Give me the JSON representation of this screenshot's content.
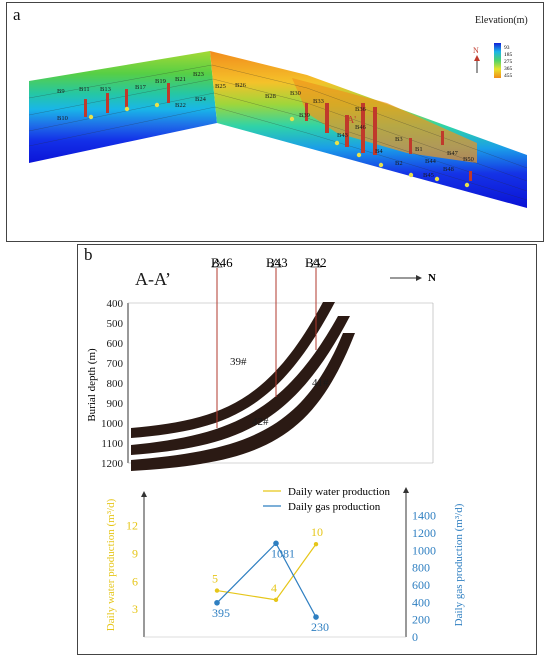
{
  "panel_a": {
    "label": "a",
    "legend_title": "Elevation(m)",
    "legend_ticks": [
      "93",
      "185",
      "275",
      "365",
      "455"
    ],
    "north": "N",
    "section_label": "A'",
    "wells": [
      {
        "name": "B9",
        "group": "left"
      },
      {
        "name": "B10",
        "group": "left"
      },
      {
        "name": "B11",
        "group": "left"
      },
      {
        "name": "B13",
        "group": "left"
      },
      {
        "name": "B17",
        "group": "left"
      },
      {
        "name": "B19",
        "group": "left"
      },
      {
        "name": "B21",
        "group": "left"
      },
      {
        "name": "B22",
        "group": "left"
      },
      {
        "name": "B23",
        "group": "left"
      },
      {
        "name": "B24",
        "group": "left"
      },
      {
        "name": "B25",
        "group": "left"
      },
      {
        "name": "B26",
        "group": "left"
      },
      {
        "name": "B28",
        "group": "right"
      },
      {
        "name": "B30",
        "group": "right"
      },
      {
        "name": "B33",
        "group": "right"
      },
      {
        "name": "B36",
        "group": "right"
      },
      {
        "name": "B39",
        "group": "right"
      },
      {
        "name": "B43",
        "group": "right"
      },
      {
        "name": "B3",
        "group": "right"
      },
      {
        "name": "B1",
        "group": "right"
      },
      {
        "name": "B2",
        "group": "right"
      },
      {
        "name": "B44",
        "group": "right"
      },
      {
        "name": "B45",
        "group": "right"
      },
      {
        "name": "B46",
        "group": "right"
      },
      {
        "name": "B47",
        "group": "right"
      },
      {
        "name": "B48",
        "group": "right"
      },
      {
        "name": "B50",
        "group": "right"
      },
      {
        "name": "B4",
        "group": "right"
      }
    ]
  },
  "panel_b": {
    "label": "b",
    "section_title": "A-A’",
    "north": "N",
    "ylabel": "Burial depth (m)",
    "yticks": [
      "400",
      "500",
      "600",
      "700",
      "800",
      "900",
      "1000",
      "1100",
      "1200"
    ],
    "well_labels": [
      "B46",
      "B43",
      "B42"
    ],
    "seam_labels": [
      "39#",
      "42#",
      "41#"
    ]
  },
  "chart_data": {
    "type": "line",
    "categories": [
      "B46",
      "B43",
      "B42"
    ],
    "series": [
      {
        "name": "Daily water production",
        "values": [
          5,
          4,
          10
        ],
        "color": "#e6c619",
        "axis": "left"
      },
      {
        "name": "Daily gas production",
        "values": [
          395,
          1081,
          230
        ],
        "color": "#2f7fc1",
        "axis": "right"
      }
    ],
    "ylabel_left": "Daily water production (m³/d)",
    "ylabel_right": "Daily gas production (m³/d)",
    "yticks_left": [
      "3",
      "6",
      "9",
      "12"
    ],
    "yticks_right": [
      "0",
      "200",
      "400",
      "600",
      "800",
      "1000",
      "1200",
      "1400"
    ],
    "ylim_left": [
      0,
      14
    ],
    "ylim_right": [
      0,
      1500
    ],
    "legend_position": "top-center"
  }
}
